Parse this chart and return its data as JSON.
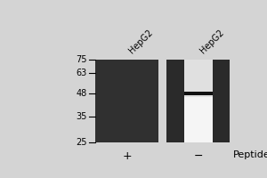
{
  "title": "",
  "background_color": "#d4d4d4",
  "mw_markers": [
    75,
    63,
    48,
    35,
    25
  ],
  "lane_labels": [
    "HepG2",
    "HepG2"
  ],
  "lane_label_rotation": 45,
  "peptide_labels": [
    "+",
    "−",
    "Peptide"
  ],
  "lane1_color": "#303030",
  "lane2_dark_color": "#2a2a2a",
  "lane2_light_color": "#f5f5f5",
  "band_color": "#111111",
  "figure_bg": "#d4d4d4"
}
